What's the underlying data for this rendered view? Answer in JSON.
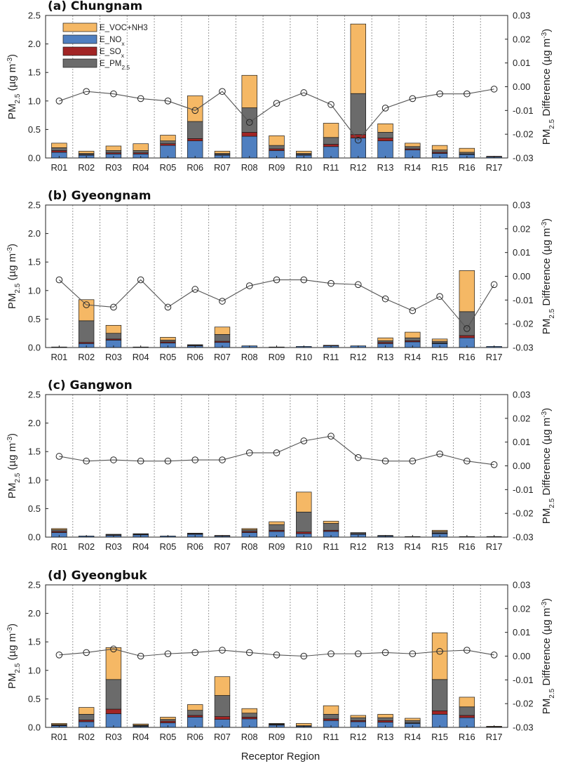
{
  "x_axis_label": "Receptor Region",
  "legend": [
    {
      "key": "voc",
      "label": "E_VOC+NH3",
      "color": "#f5b865"
    },
    {
      "key": "nox",
      "label": "E_NO",
      "sub": "x",
      "color": "#4f7fc0"
    },
    {
      "key": "sox",
      "label": "E_SO",
      "sub": "x",
      "color": "#a12424"
    },
    {
      "key": "pm",
      "label": "E_PM",
      "sub": "2.5",
      "color": "#6b6b6b"
    }
  ],
  "y_left_label": {
    "pre": "PM",
    "sub": "2.5",
    "post": " (µg m",
    "sup": "-3",
    "close": ")"
  },
  "y_right_label": {
    "pre": "PM",
    "sub": "2.5",
    "post": " Difference (µg m",
    "sup": "-3",
    "close": ")"
  },
  "chart_data": [
    {
      "type": "bar",
      "title": "(a) Chungnam",
      "categories": [
        "R01",
        "R02",
        "R03",
        "R04",
        "R05",
        "R06",
        "R07",
        "R08",
        "R09",
        "R10",
        "R11",
        "R12",
        "R13",
        "R14",
        "R15",
        "R16",
        "R17"
      ],
      "ylim": [
        0,
        2.5
      ],
      "y2lim": [
        -0.03,
        0.03
      ],
      "yticks": [
        "0.0",
        "0.5",
        "1.0",
        "1.5",
        "2.0",
        "2.5"
      ],
      "y2ticks": [
        "-0.03",
        "-0.02",
        "-0.01",
        "0.00",
        "0.01",
        "0.02",
        "0.03"
      ],
      "series": [
        {
          "name": "E_NO_x",
          "values": [
            0.1,
            0.05,
            0.07,
            0.07,
            0.22,
            0.3,
            0.05,
            0.38,
            0.13,
            0.05,
            0.2,
            0.35,
            0.3,
            0.14,
            0.08,
            0.06,
            0.02
          ]
        },
        {
          "name": "E_SO_x",
          "values": [
            0.03,
            0.01,
            0.02,
            0.02,
            0.03,
            0.04,
            0.01,
            0.07,
            0.03,
            0.01,
            0.04,
            0.06,
            0.05,
            0.02,
            0.02,
            0.01,
            0.01
          ]
        },
        {
          "name": "E_PM_2.5",
          "values": [
            0.05,
            0.02,
            0.04,
            0.04,
            0.05,
            0.3,
            0.02,
            0.43,
            0.06,
            0.02,
            0.12,
            0.72,
            0.1,
            0.04,
            0.04,
            0.03,
            0.0
          ]
        },
        {
          "name": "E_VOC+NH3",
          "values": [
            0.08,
            0.04,
            0.08,
            0.12,
            0.1,
            0.45,
            0.04,
            0.57,
            0.17,
            0.04,
            0.25,
            1.22,
            0.15,
            0.06,
            0.08,
            0.07,
            0.0
          ]
        }
      ],
      "difference": {
        "name": "PM2.5 Difference",
        "values": [
          -0.006,
          -0.002,
          -0.003,
          -0.005,
          -0.006,
          -0.01,
          -0.002,
          -0.015,
          -0.007,
          -0.0025,
          -0.0075,
          -0.0225,
          -0.009,
          -0.005,
          -0.003,
          -0.003,
          -0.001
        ]
      }
    },
    {
      "type": "bar",
      "title": "(b) Gyeongnam",
      "categories": [
        "R01",
        "R02",
        "R03",
        "R04",
        "R05",
        "R06",
        "R07",
        "R08",
        "R09",
        "R10",
        "R11",
        "R12",
        "R13",
        "R14",
        "R15",
        "R16",
        "R17"
      ],
      "ylim": [
        0,
        2.5
      ],
      "y2lim": [
        -0.03,
        0.03
      ],
      "yticks": [
        "0.0",
        "0.5",
        "1.0",
        "1.5",
        "2.0",
        "2.5"
      ],
      "y2ticks": [
        "-0.03",
        "-0.02",
        "-0.01",
        "0.00",
        "0.01",
        "0.02",
        "0.03"
      ],
      "series": [
        {
          "name": "E_NO_x",
          "values": [
            0.01,
            0.07,
            0.13,
            0.01,
            0.08,
            0.03,
            0.09,
            0.03,
            0.01,
            0.02,
            0.03,
            0.03,
            0.07,
            0.1,
            0.07,
            0.17,
            0.02
          ]
        },
        {
          "name": "E_SO_x",
          "values": [
            0.0,
            0.02,
            0.02,
            0.0,
            0.02,
            0.01,
            0.02,
            0.0,
            0.0,
            0.0,
            0.01,
            0.0,
            0.02,
            0.02,
            0.01,
            0.04,
            0.0
          ]
        },
        {
          "name": "E_PM_2.5",
          "values": [
            0.0,
            0.38,
            0.1,
            0.0,
            0.03,
            0.01,
            0.12,
            0.0,
            0.0,
            0.0,
            0.0,
            0.0,
            0.03,
            0.05,
            0.03,
            0.42,
            0.0
          ]
        },
        {
          "name": "E_VOC+NH3",
          "values": [
            0.0,
            0.37,
            0.14,
            0.0,
            0.05,
            0.0,
            0.13,
            0.0,
            0.0,
            0.0,
            0.0,
            0.0,
            0.05,
            0.1,
            0.04,
            0.72,
            0.0
          ]
        }
      ],
      "difference": {
        "name": "PM2.5 Difference",
        "values": [
          -0.0015,
          -0.012,
          -0.013,
          -0.0015,
          -0.013,
          -0.0055,
          -0.0105,
          -0.004,
          -0.0015,
          -0.0015,
          -0.003,
          -0.0035,
          -0.0095,
          -0.0145,
          -0.0085,
          -0.022,
          -0.0035
        ]
      }
    },
    {
      "type": "bar",
      "title": "(c) Gangwon",
      "categories": [
        "R01",
        "R02",
        "R03",
        "R04",
        "R05",
        "R06",
        "R07",
        "R08",
        "R09",
        "R10",
        "R11",
        "R12",
        "R13",
        "R14",
        "R15",
        "R16",
        "R17"
      ],
      "ylim": [
        0,
        2.5
      ],
      "y2lim": [
        -0.03,
        0.03
      ],
      "yticks": [
        "0.0",
        "0.5",
        "1.0",
        "1.5",
        "2.0",
        "2.5"
      ],
      "y2ticks": [
        "-0.03",
        "-0.02",
        "-0.01",
        "0.00",
        "0.01",
        "0.02",
        "0.03"
      ],
      "series": [
        {
          "name": "E_NO_x",
          "values": [
            0.08,
            0.02,
            0.03,
            0.04,
            0.02,
            0.05,
            0.02,
            0.08,
            0.1,
            0.06,
            0.1,
            0.05,
            0.02,
            0.01,
            0.06,
            0.01,
            0.0
          ]
        },
        {
          "name": "E_SO_x",
          "values": [
            0.02,
            0.0,
            0.01,
            0.01,
            0.0,
            0.01,
            0.01,
            0.02,
            0.02,
            0.03,
            0.02,
            0.01,
            0.0,
            0.0,
            0.01,
            0.0,
            0.0
          ]
        },
        {
          "name": "E_PM_2.5",
          "values": [
            0.03,
            0.0,
            0.01,
            0.01,
            0.0,
            0.01,
            0.0,
            0.03,
            0.1,
            0.35,
            0.12,
            0.02,
            0.01,
            0.0,
            0.03,
            0.0,
            0.0
          ]
        },
        {
          "name": "E_VOC+NH3",
          "values": [
            0.02,
            0.0,
            0.0,
            0.0,
            0.0,
            0.0,
            0.0,
            0.02,
            0.05,
            0.35,
            0.04,
            0.0,
            0.0,
            0.0,
            0.02,
            0.0,
            0.0
          ]
        }
      ],
      "difference": {
        "name": "PM2.5 Difference",
        "values": [
          0.004,
          0.002,
          0.0025,
          0.002,
          0.002,
          0.0025,
          0.0025,
          0.0055,
          0.0055,
          0.0105,
          0.0125,
          0.0035,
          0.002,
          0.002,
          0.005,
          0.002,
          0.0005
        ]
      }
    },
    {
      "type": "bar",
      "title": "(d) Gyeongbuk",
      "categories": [
        "R01",
        "R02",
        "R03",
        "R04",
        "R05",
        "R06",
        "R07",
        "R08",
        "R09",
        "R10",
        "R11",
        "R12",
        "R13",
        "R14",
        "R15",
        "R16",
        "R17"
      ],
      "ylim": [
        0,
        2.5
      ],
      "y2lim": [
        -0.03,
        0.03
      ],
      "yticks": [
        "0.0",
        "0.5",
        "1.0",
        "1.5",
        "2.0",
        "2.5"
      ],
      "y2ticks": [
        "-0.03",
        "-0.02",
        "-0.01",
        "0.00",
        "0.01",
        "0.02",
        "0.03"
      ],
      "series": [
        {
          "name": "E_NO_x",
          "values": [
            0.03,
            0.1,
            0.24,
            0.02,
            0.08,
            0.18,
            0.14,
            0.15,
            0.04,
            0.02,
            0.12,
            0.1,
            0.09,
            0.07,
            0.23,
            0.17,
            0.01
          ]
        },
        {
          "name": "E_SO_x",
          "values": [
            0.01,
            0.03,
            0.08,
            0.01,
            0.03,
            0.03,
            0.05,
            0.03,
            0.01,
            0.0,
            0.03,
            0.02,
            0.03,
            0.01,
            0.06,
            0.04,
            0.0
          ]
        },
        {
          "name": "E_PM_2.5",
          "values": [
            0.01,
            0.1,
            0.52,
            0.01,
            0.03,
            0.09,
            0.37,
            0.07,
            0.01,
            0.01,
            0.08,
            0.05,
            0.05,
            0.04,
            0.55,
            0.15,
            0.0
          ]
        },
        {
          "name": "E_VOC+NH3",
          "values": [
            0.02,
            0.12,
            0.56,
            0.02,
            0.04,
            0.1,
            0.33,
            0.08,
            0.01,
            0.04,
            0.15,
            0.04,
            0.06,
            0.04,
            0.82,
            0.17,
            0.01
          ]
        }
      ],
      "difference": {
        "name": "PM2.5 Difference",
        "values": [
          0.0005,
          0.0015,
          0.003,
          0.0,
          0.001,
          0.0015,
          0.0025,
          0.0015,
          0.0005,
          0.0,
          0.001,
          0.001,
          0.0015,
          0.001,
          0.002,
          0.0025,
          0.0005
        ]
      }
    }
  ]
}
